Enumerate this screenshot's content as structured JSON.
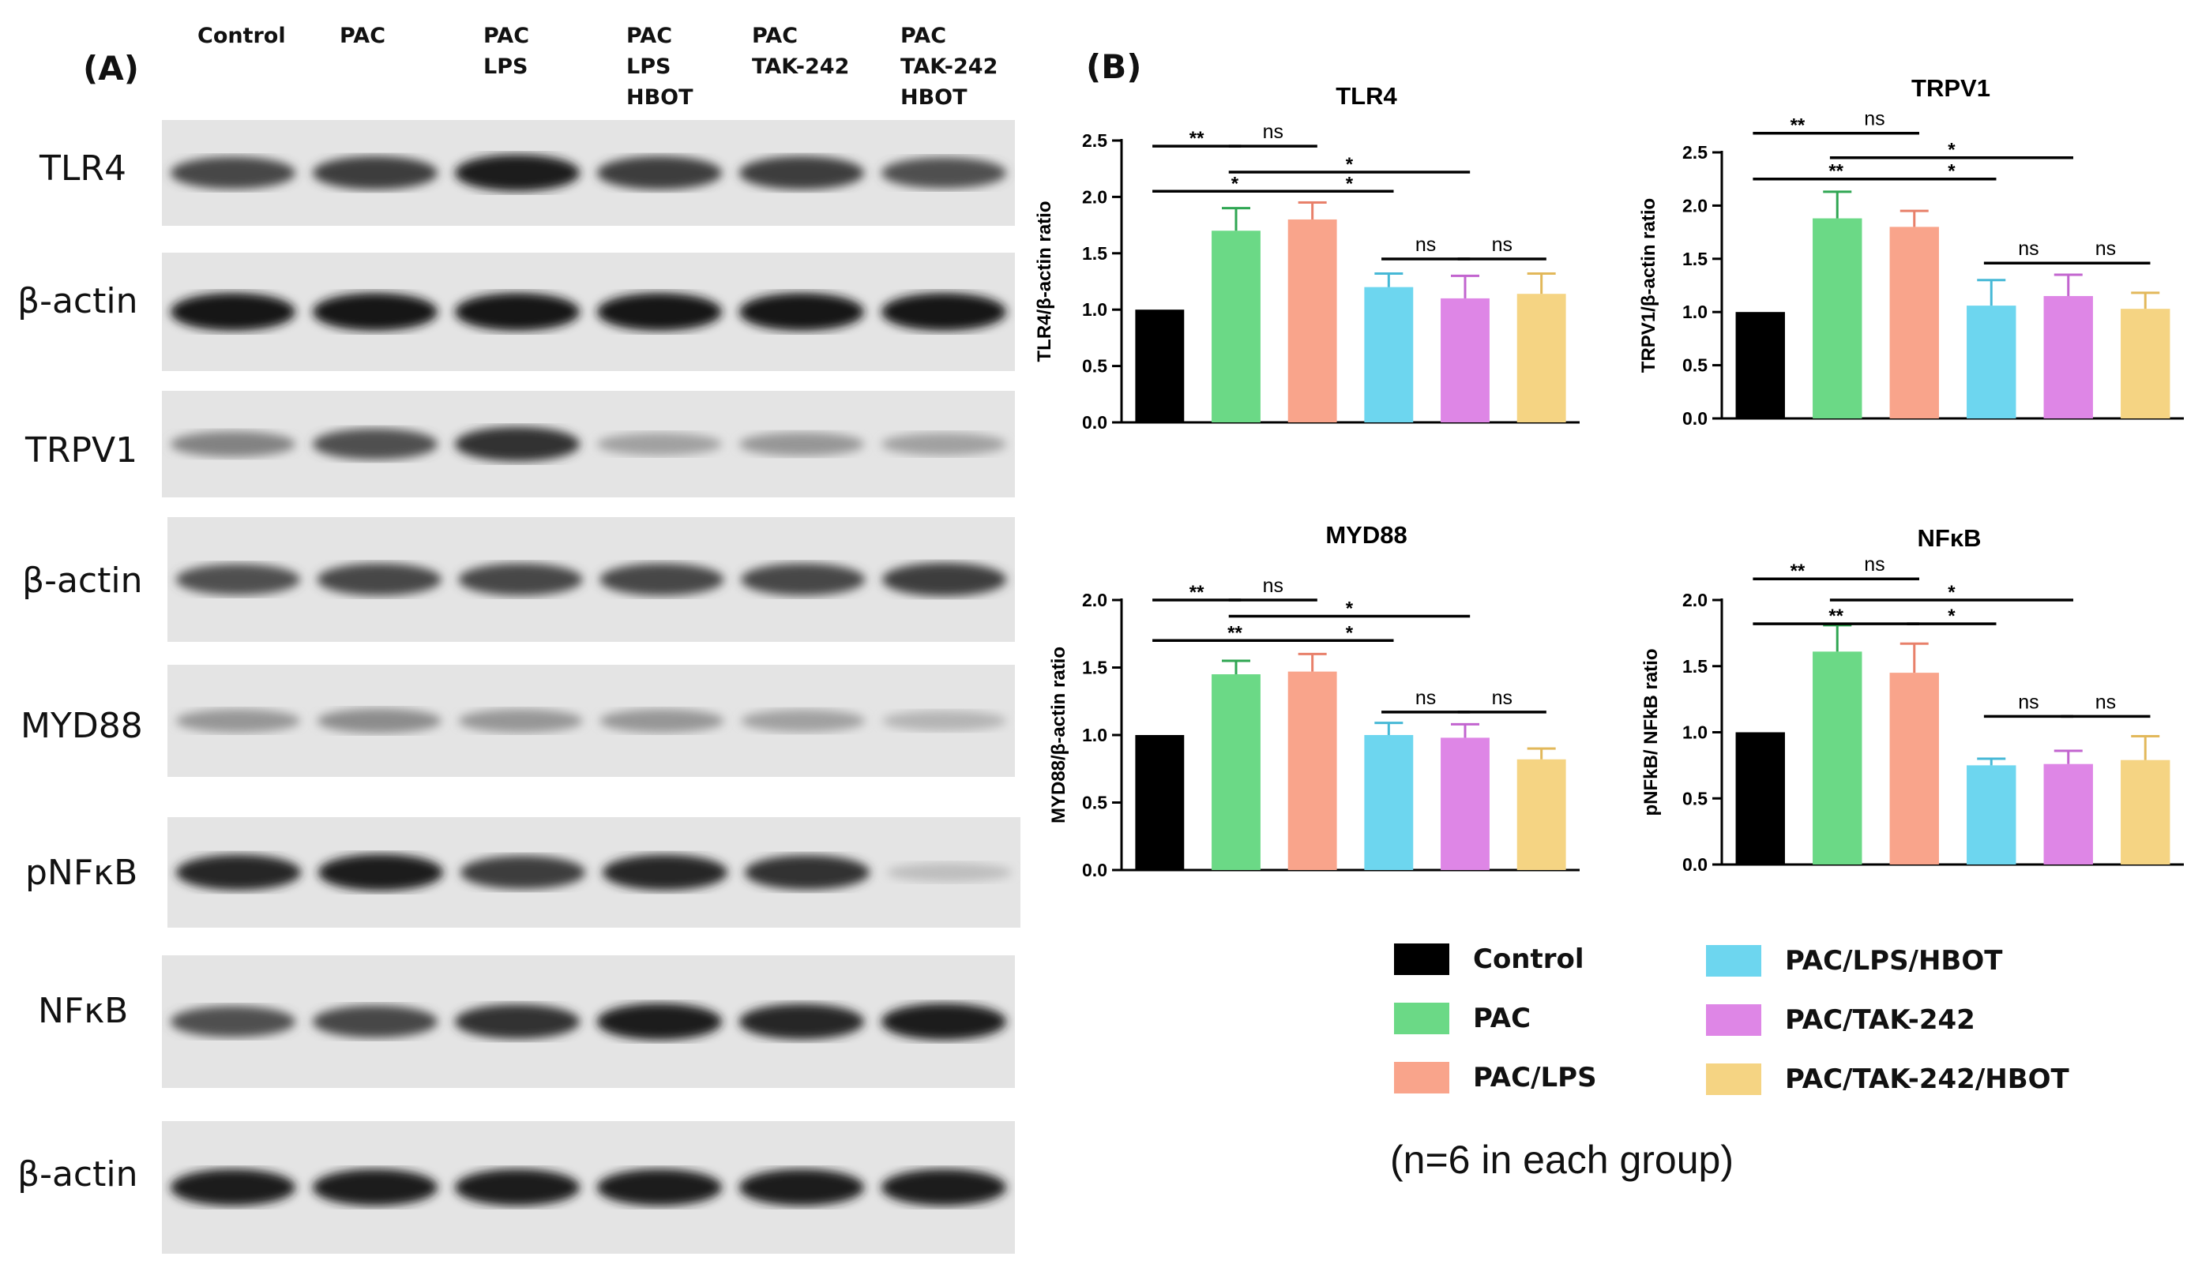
{
  "panel_a": {
    "label": "(A)",
    "lanes": [
      [
        "Control"
      ],
      [
        "PAC"
      ],
      [
        "PAC",
        "LPS"
      ],
      [
        "PAC",
        "LPS",
        "HBOT"
      ],
      [
        "PAC",
        "TAK-242"
      ],
      [
        "PAC",
        "TAK-242",
        "HBOT"
      ]
    ],
    "rows": [
      {
        "label": "TLR4",
        "intensity": [
          0.75,
          0.8,
          0.95,
          0.8,
          0.8,
          0.7
        ]
      },
      {
        "label": "β-actin",
        "intensity": [
          1.0,
          1.0,
          1.0,
          1.0,
          1.0,
          1.0
        ]
      },
      {
        "label": "TRPV1",
        "intensity": [
          0.45,
          0.7,
          0.85,
          0.3,
          0.35,
          0.3
        ]
      },
      {
        "label": "β-actin",
        "intensity": [
          0.7,
          0.75,
          0.75,
          0.75,
          0.75,
          0.8
        ]
      },
      {
        "label": "MYD88",
        "intensity": [
          0.35,
          0.4,
          0.35,
          0.35,
          0.3,
          0.2
        ]
      },
      {
        "label": "pNFκB",
        "intensity": [
          0.9,
          0.95,
          0.8,
          0.9,
          0.85,
          0.15
        ]
      },
      {
        "label": "NFκB",
        "intensity": [
          0.7,
          0.75,
          0.85,
          0.95,
          0.9,
          0.95
        ]
      },
      {
        "label": "β-actin",
        "intensity": [
          0.95,
          0.95,
          0.95,
          0.95,
          0.95,
          0.95
        ]
      }
    ]
  },
  "panel_b": {
    "label": "(B)"
  },
  "colors": {
    "Control": "#000000",
    "PAC": "#6bd986",
    "PAC/LPS": "#f9a48b",
    "PAC/LPS/HBOT": "#6dd6ef",
    "PAC/TAK-242": "#de86e6",
    "PAC/TAK-242/HBOT": "#f5d483"
  },
  "legend": [
    {
      "label": "Control",
      "color": "#000000"
    },
    {
      "label": "PAC",
      "color": "#6bd986"
    },
    {
      "label": "PAC/LPS",
      "color": "#f9a48b"
    },
    {
      "label": "PAC/LPS/HBOT",
      "color": "#6dd6ef"
    },
    {
      "label": "PAC/TAK-242",
      "color": "#de86e6"
    },
    {
      "label": "PAC/TAK-242/HBOT",
      "color": "#f5d483"
    }
  ],
  "note": "(n=6 in each group)",
  "chart_data": [
    {
      "type": "bar",
      "title": "TLR4",
      "ylabel": "TLR4/β-actin ratio",
      "categories": [
        "Control",
        "PAC",
        "PAC/LPS",
        "PAC/LPS/HBOT",
        "PAC/TAK-242",
        "PAC/TAK-242/HBOT"
      ],
      "values": [
        1.0,
        1.7,
        1.8,
        1.2,
        1.1,
        1.14
      ],
      "errors": [
        0,
        0.2,
        0.15,
        0.12,
        0.2,
        0.18
      ],
      "ylim": [
        0,
        2.5
      ],
      "yticks": [
        "0.0",
        "0.5",
        "1.0",
        "1.5",
        "2.0",
        "2.5"
      ],
      "significance": [
        {
          "from": 0,
          "to": 1,
          "label": "**",
          "level": 2.45
        },
        {
          "from": 1,
          "to": 2,
          "label": "ns",
          "level": 2.45
        },
        {
          "from": 1,
          "to": 4,
          "label": "*",
          "level": 2.22
        },
        {
          "from": 0,
          "to": 2,
          "label": "*",
          "level": 2.05
        },
        {
          "from": 2,
          "to": 3,
          "label": "*",
          "level": 2.05
        },
        {
          "from": 3,
          "to": 4,
          "label": "ns",
          "level": 1.45
        },
        {
          "from": 4,
          "to": 5,
          "label": "ns",
          "level": 1.45
        }
      ]
    },
    {
      "type": "bar",
      "title": "TRPV1",
      "ylabel": "TRPV1/β-actin ratio",
      "categories": [
        "Control",
        "PAC",
        "PAC/LPS",
        "PAC/LPS/HBOT",
        "PAC/TAK-242",
        "PAC/TAK-242/HBOT"
      ],
      "values": [
        1.0,
        1.88,
        1.8,
        1.06,
        1.15,
        1.03
      ],
      "errors": [
        0,
        0.25,
        0.15,
        0.24,
        0.2,
        0.15
      ],
      "ylim": [
        0,
        2.5
      ],
      "yticks": [
        "0.0",
        "0.5",
        "1.0",
        "1.5",
        "2.0",
        "2.5"
      ],
      "significance": [
        {
          "from": 0,
          "to": 1,
          "label": "**",
          "level": 2.68
        },
        {
          "from": 1,
          "to": 2,
          "label": "ns",
          "level": 2.68
        },
        {
          "from": 1,
          "to": 4,
          "label": "*",
          "level": 2.45
        },
        {
          "from": 0,
          "to": 2,
          "label": "**",
          "level": 2.25
        },
        {
          "from": 2,
          "to": 3,
          "label": "*",
          "level": 2.25
        },
        {
          "from": 3,
          "to": 4,
          "label": "ns",
          "level": 1.46
        },
        {
          "from": 4,
          "to": 5,
          "label": "ns",
          "level": 1.46
        }
      ]
    },
    {
      "type": "bar",
      "title": "MYD88",
      "ylabel": "MYD88/β-actin ratio",
      "categories": [
        "Control",
        "PAC",
        "PAC/LPS",
        "PAC/LPS/HBOT",
        "PAC/TAK-242",
        "PAC/TAK-242/HBOT"
      ],
      "values": [
        1.0,
        1.45,
        1.47,
        1.0,
        0.98,
        0.82
      ],
      "errors": [
        0,
        0.1,
        0.13,
        0.09,
        0.1,
        0.08
      ],
      "ylim": [
        0,
        2.0
      ],
      "yticks": [
        "0.0",
        "0.5",
        "1.0",
        "1.5",
        "2.0"
      ],
      "significance": [
        {
          "from": 0,
          "to": 1,
          "label": "**",
          "level": 2.0
        },
        {
          "from": 1,
          "to": 2,
          "label": "ns",
          "level": 2.0
        },
        {
          "from": 1,
          "to": 4,
          "label": "*",
          "level": 1.88
        },
        {
          "from": 0,
          "to": 2,
          "label": "**",
          "level": 1.7
        },
        {
          "from": 2,
          "to": 3,
          "label": "*",
          "level": 1.7
        },
        {
          "from": 3,
          "to": 4,
          "label": "ns",
          "level": 1.17
        },
        {
          "from": 4,
          "to": 5,
          "label": "ns",
          "level": 1.17
        }
      ]
    },
    {
      "type": "bar",
      "title": "NFκB",
      "ylabel": "pNFkB/ NFkB ratio",
      "categories": [
        "Control",
        "PAC",
        "PAC/LPS",
        "PAC/LPS/HBOT",
        "PAC/TAK-242",
        "PAC/TAK-242/HBOT"
      ],
      "values": [
        1.0,
        1.61,
        1.45,
        0.75,
        0.76,
        0.79
      ],
      "errors": [
        0,
        0.2,
        0.22,
        0.05,
        0.1,
        0.18
      ],
      "ylim": [
        0,
        2.0
      ],
      "yticks": [
        "0.0",
        "0.5",
        "1.0",
        "1.5",
        "2.0"
      ],
      "significance": [
        {
          "from": 0,
          "to": 1,
          "label": "**",
          "level": 2.16
        },
        {
          "from": 1,
          "to": 2,
          "label": "ns",
          "level": 2.16
        },
        {
          "from": 1,
          "to": 4,
          "label": "*",
          "level": 2.0
        },
        {
          "from": 0,
          "to": 2,
          "label": "**",
          "level": 1.82
        },
        {
          "from": 2,
          "to": 3,
          "label": "*",
          "level": 1.82
        },
        {
          "from": 3,
          "to": 4,
          "label": "ns",
          "level": 1.12
        },
        {
          "from": 4,
          "to": 5,
          "label": "ns",
          "level": 1.12
        }
      ]
    }
  ]
}
